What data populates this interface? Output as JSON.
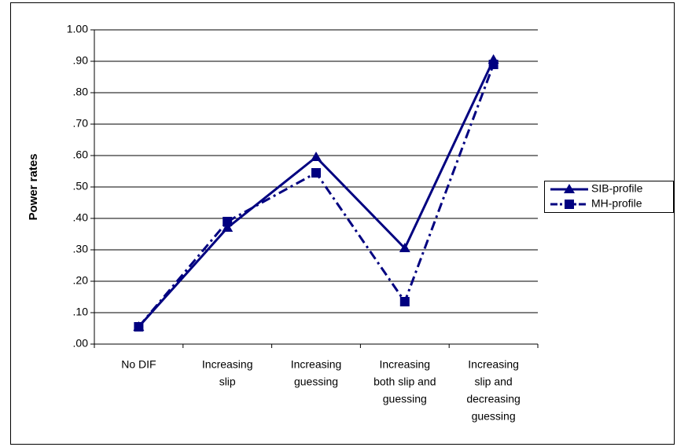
{
  "chart_data": {
    "type": "line",
    "y_label": "Power rates",
    "categories": [
      [
        "No DIF"
      ],
      [
        "Increasing",
        "slip"
      ],
      [
        "Increasing",
        "guessing"
      ],
      [
        "Increasing",
        "both slip and",
        "guessing"
      ],
      [
        "Increasing",
        "slip and",
        "decreasing",
        "guessing"
      ]
    ],
    "series": [
      {
        "name": "SIB-profile",
        "color": "#000080",
        "marker": "triangle",
        "dash": "solid",
        "values": [
          0.055,
          0.37,
          0.595,
          0.305,
          0.905
        ]
      },
      {
        "name": "MH-profile",
        "color": "#000080",
        "marker": "square",
        "dash": "dashdot",
        "values": [
          0.055,
          0.39,
          0.545,
          0.135,
          0.89
        ]
      }
    ],
    "ylim": [
      0,
      1
    ],
    "yticks": [
      {
        "value": 0,
        "label": ".00"
      },
      {
        "value": 0.1,
        "label": ".10"
      },
      {
        "value": 0.2,
        "label": ".20"
      },
      {
        "value": 0.3,
        "label": ".30"
      },
      {
        "value": 0.4,
        "label": ".40"
      },
      {
        "value": 0.5,
        "label": ".50"
      },
      {
        "value": 0.6,
        "label": ".60"
      },
      {
        "value": 0.7,
        "label": ".70"
      },
      {
        "value": 0.8,
        "label": ".80"
      },
      {
        "value": 0.9,
        "label": ".90"
      },
      {
        "value": 1,
        "label": "1.00"
      }
    ],
    "grid": true,
    "legend": "right"
  }
}
